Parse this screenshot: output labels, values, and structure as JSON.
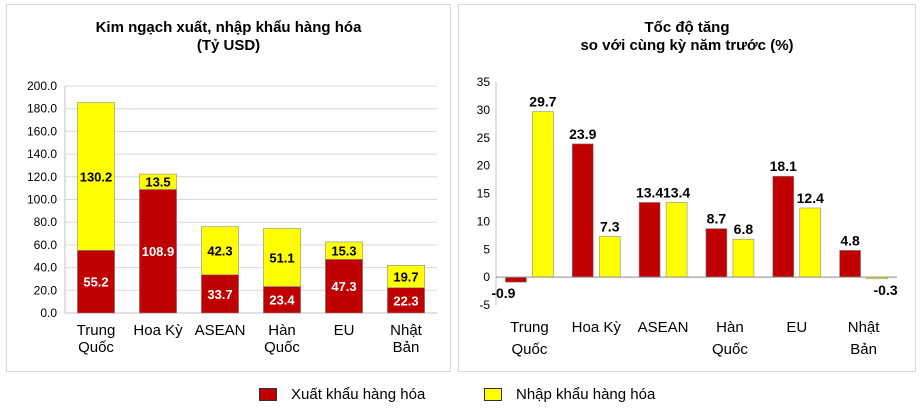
{
  "chart_data": [
    {
      "type": "bar",
      "stacked": true,
      "title_lines": [
        "Kim ngạch xuất, nhập khẩu hàng hóa",
        "(Tỷ USD)"
      ],
      "categories": [
        [
          "Trung",
          "Quốc"
        ],
        [
          "Hoa Kỳ"
        ],
        [
          "ASEAN"
        ],
        [
          "Hàn",
          "Quốc"
        ],
        [
          "EU"
        ],
        [
          "Nhật",
          "Bản"
        ]
      ],
      "series": [
        {
          "name": "Xuất khẩu hàng hóa",
          "color": "#C00000",
          "values": [
            55.2,
            108.9,
            33.7,
            23.4,
            47.3,
            22.3
          ],
          "labels": [
            "55.2",
            "108.9",
            "33.7",
            "23.4",
            "47.3",
            "22.3"
          ]
        },
        {
          "name": "Nhập khẩu hàng hóa",
          "color": "#FFFF00",
          "values": [
            130.2,
            13.5,
            42.3,
            51.1,
            15.3,
            19.7
          ],
          "labels": [
            "130.2",
            "13.5",
            "42.3",
            "51.1",
            "15.3",
            "19.7"
          ]
        }
      ],
      "ylim": [
        0,
        200
      ],
      "yticks": [
        "0.0",
        "20.0",
        "40.0",
        "60.0",
        "80.0",
        "100.0",
        "120.0",
        "140.0",
        "160.0",
        "180.0",
        "200.0"
      ],
      "grid": true
    },
    {
      "type": "bar",
      "stacked": false,
      "title_lines": [
        "Tốc độ tăng",
        "so với cùng kỳ năm trước (%)"
      ],
      "categories": [
        [
          "Trung",
          "Quốc"
        ],
        [
          "Hoa Kỳ"
        ],
        [
          "ASEAN"
        ],
        [
          "Hàn",
          "Quốc"
        ],
        [
          "EU"
        ],
        [
          "Nhật",
          "Bản"
        ]
      ],
      "series": [
        {
          "name": "Xuất khẩu hàng hóa",
          "color": "#C00000",
          "values": [
            -0.9,
            23.9,
            13.4,
            8.7,
            18.1,
            4.8
          ],
          "labels": [
            "-0.9",
            "23.9",
            "13.4",
            "8.7",
            "18.1",
            "4.8"
          ]
        },
        {
          "name": "Nhập khẩu hàng hóa",
          "color": "#FFFF00",
          "values": [
            29.7,
            7.3,
            13.4,
            6.8,
            12.4,
            -0.3
          ],
          "labels": [
            "29.7",
            "7.3",
            "13.4",
            "6.8",
            "12.4",
            "-0.3"
          ]
        }
      ],
      "ylim": [
        -5,
        35
      ],
      "yticks": [
        "-5",
        "0",
        "5",
        "10",
        "15",
        "20",
        "25",
        "30",
        "35"
      ],
      "grid": false
    }
  ],
  "legend": [
    {
      "label": "Xuất khẩu hàng hóa",
      "color": "#C00000"
    },
    {
      "label": "Nhập khẩu hàng hóa",
      "color": "#FFFF00"
    }
  ]
}
